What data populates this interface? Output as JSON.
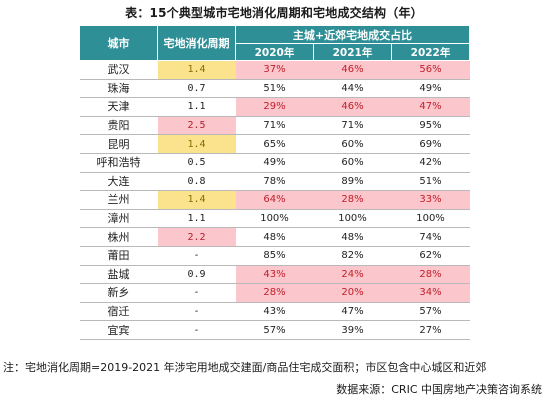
{
  "title": "表：15个典型城市宅地消化周期和宅地成交结构（年）",
  "table": {
    "header_city": "城市",
    "header_cycle": "宅地消化周期",
    "header_group": "主城+近郊宅地成交占比",
    "years": [
      "2020年",
      "2021年",
      "2022年"
    ]
  },
  "note": "注：宅地消化周期=2019-2021 年涉宅用地成交建面/商品住宅成交面积；市区包含中心城区和近郊",
  "source": "数据来源：CRIC 中国房地产决策咨询系统",
  "colors": {
    "header_bg": "#2e8f96",
    "highlight_yellow": "#fbe38d",
    "highlight_pink": "#fbc6cc"
  },
  "chart_data": {
    "type": "table",
    "title": "表：15个典型城市宅地消化周期和宅地成交结构（年）",
    "columns": [
      "城市",
      "宅地消化周期",
      "2020年",
      "2021年",
      "2022年"
    ],
    "rows": [
      {
        "city": "武汉",
        "cycle": "1.4",
        "cycle_hl": "yellow",
        "r2020": "37%",
        "r2021": "46%",
        "r2022": "56%",
        "hl": [
          true,
          true,
          true
        ]
      },
      {
        "city": "珠海",
        "cycle": "0.7",
        "cycle_hl": "",
        "r2020": "51%",
        "r2021": "44%",
        "r2022": "49%",
        "hl": [
          false,
          false,
          false
        ]
      },
      {
        "city": "天津",
        "cycle": "1.1",
        "cycle_hl": "",
        "r2020": "29%",
        "r2021": "46%",
        "r2022": "47%",
        "hl": [
          true,
          true,
          true
        ]
      },
      {
        "city": "贵阳",
        "cycle": "2.5",
        "cycle_hl": "pink",
        "r2020": "71%",
        "r2021": "71%",
        "r2022": "95%",
        "hl": [
          false,
          false,
          false
        ]
      },
      {
        "city": "昆明",
        "cycle": "1.4",
        "cycle_hl": "yellow",
        "r2020": "65%",
        "r2021": "60%",
        "r2022": "69%",
        "hl": [
          false,
          false,
          false
        ]
      },
      {
        "city": "呼和浩特",
        "cycle": "0.5",
        "cycle_hl": "",
        "r2020": "49%",
        "r2021": "60%",
        "r2022": "42%",
        "hl": [
          false,
          false,
          false
        ]
      },
      {
        "city": "大连",
        "cycle": "0.8",
        "cycle_hl": "",
        "r2020": "78%",
        "r2021": "89%",
        "r2022": "51%",
        "hl": [
          false,
          false,
          false
        ]
      },
      {
        "city": "兰州",
        "cycle": "1.4",
        "cycle_hl": "yellow",
        "r2020": "64%",
        "r2021": "28%",
        "r2022": "33%",
        "hl": [
          true,
          true,
          true
        ]
      },
      {
        "city": "漳州",
        "cycle": "1.1",
        "cycle_hl": "",
        "r2020": "100%",
        "r2021": "100%",
        "r2022": "100%",
        "hl": [
          false,
          false,
          false
        ]
      },
      {
        "city": "株州",
        "cycle": "2.2",
        "cycle_hl": "pink",
        "r2020": "48%",
        "r2021": "48%",
        "r2022": "74%",
        "hl": [
          false,
          false,
          false
        ]
      },
      {
        "city": "莆田",
        "cycle": "-",
        "cycle_hl": "",
        "r2020": "85%",
        "r2021": "82%",
        "r2022": "62%",
        "hl": [
          false,
          false,
          false
        ]
      },
      {
        "city": "盐城",
        "cycle": "0.9",
        "cycle_hl": "",
        "r2020": "43%",
        "r2021": "24%",
        "r2022": "28%",
        "hl": [
          true,
          true,
          true
        ]
      },
      {
        "city": "新乡",
        "cycle": "-",
        "cycle_hl": "",
        "r2020": "28%",
        "r2021": "20%",
        "r2022": "34%",
        "hl": [
          true,
          true,
          true
        ]
      },
      {
        "city": "宿迁",
        "cycle": "-",
        "cycle_hl": "",
        "r2020": "43%",
        "r2021": "47%",
        "r2022": "57%",
        "hl": [
          false,
          false,
          false
        ]
      },
      {
        "city": "宜宾",
        "cycle": "-",
        "cycle_hl": "",
        "r2020": "57%",
        "r2021": "39%",
        "r2022": "27%",
        "hl": [
          false,
          false,
          false
        ]
      }
    ]
  }
}
